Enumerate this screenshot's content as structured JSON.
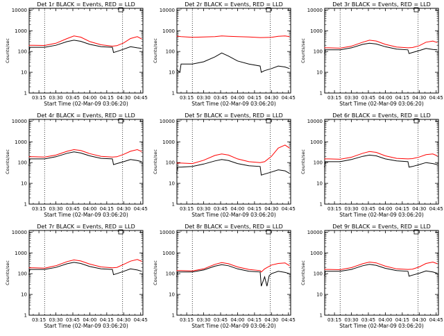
{
  "colors": {
    "events": "#000000",
    "lld": "#ff0000",
    "background": "#ffffff"
  },
  "chart_data": [
    {
      "type": "line",
      "title": "Det 1r BLACK = Events, RED = LLD",
      "ylabel": "Counts/sec",
      "xlabel": "Start Time (02-Mar-09 03:06:20)",
      "xticks": [
        "03:15",
        "03:30",
        "03:45",
        "04:00",
        "04:15",
        "04:30",
        "04:45"
      ],
      "yticks": [
        "1",
        "10",
        "100",
        "1000",
        "10000"
      ],
      "yscale": "log",
      "ylim": [
        1,
        12000
      ],
      "xlim": [
        "03:06:20",
        "04:47:00"
      ],
      "vlines": [
        "03:20",
        "04:29"
      ],
      "series": [
        {
          "name": "Events",
          "x": [
            "03:06",
            "03:07",
            "03:10",
            "03:20",
            "03:30",
            "03:40",
            "03:46",
            "03:52",
            "04:00",
            "04:10",
            "04:20",
            "04:21",
            "04:24",
            "04:30",
            "04:36",
            "04:42",
            "04:46"
          ],
          "y": [
            80,
            160,
            160,
            160,
            200,
            300,
            350,
            310,
            220,
            170,
            160,
            90,
            100,
            130,
            170,
            150,
            140
          ]
        },
        {
          "name": "LLD",
          "x": [
            "03:06",
            "03:07",
            "03:10",
            "03:20",
            "03:30",
            "03:40",
            "03:46",
            "03:52",
            "04:00",
            "04:10",
            "04:20",
            "04:24",
            "04:30",
            "04:36",
            "04:42",
            "04:46"
          ],
          "y": [
            190,
            200,
            200,
            195,
            250,
            420,
            560,
            490,
            300,
            210,
            180,
            190,
            260,
            420,
            520,
            400
          ]
        }
      ]
    },
    {
      "type": "line",
      "title": "Det 2r BLACK = Events, RED = LLD",
      "ylabel": "Counts/sec",
      "xlabel": "Start Time (02-Mar-09 03:06:20)",
      "xticks": [
        "03:15",
        "03:30",
        "03:45",
        "04:00",
        "04:15",
        "04:30",
        "04:45"
      ],
      "yticks": [
        "1",
        "10",
        "100",
        "1000",
        "10000"
      ],
      "yscale": "log",
      "ylim": [
        1,
        12000
      ],
      "xlim": [
        "03:06:20",
        "04:47:00"
      ],
      "vlines": [
        "03:20",
        "04:29"
      ],
      "series": [
        {
          "name": "Events",
          "x": [
            "03:06",
            "03:07",
            "03:09",
            "03:10",
            "03:20",
            "03:30",
            "03:40",
            "03:46",
            "03:52",
            "04:00",
            "04:10",
            "04:20",
            "04:21",
            "04:24",
            "04:30",
            "04:36",
            "04:42",
            "04:46"
          ],
          "y": [
            15,
            12,
            10,
            25,
            25,
            32,
            55,
            85,
            60,
            35,
            25,
            20,
            10,
            12,
            15,
            20,
            18,
            15
          ]
        },
        {
          "name": "LLD",
          "x": [
            "03:06",
            "03:10",
            "03:20",
            "03:30",
            "03:40",
            "03:46",
            "03:52",
            "04:00",
            "04:10",
            "04:20",
            "04:30",
            "04:36",
            "04:42",
            "04:46"
          ],
          "y": [
            550,
            520,
            480,
            500,
            520,
            560,
            540,
            520,
            500,
            470,
            480,
            540,
            560,
            520
          ]
        }
      ]
    },
    {
      "type": "line",
      "title": "Det 3r BLACK = Events, RED = LLD",
      "ylabel": "Counts/sec",
      "xlabel": "Start Time (02-Mar-09 03:06:20)",
      "xticks": [
        "03:15",
        "03:30",
        "03:45",
        "04:00",
        "04:15",
        "04:30",
        "04:45"
      ],
      "yticks": [
        "1",
        "10",
        "100",
        "1000",
        "10000"
      ],
      "yscale": "log",
      "ylim": [
        1,
        12000
      ],
      "xlim": [
        "03:06:20",
        "04:47:00"
      ],
      "vlines": [
        "03:20",
        "04:29"
      ],
      "series": [
        {
          "name": "Events",
          "x": [
            "03:06",
            "03:07",
            "03:10",
            "03:20",
            "03:30",
            "03:40",
            "03:46",
            "03:52",
            "04:00",
            "04:10",
            "04:20",
            "04:21",
            "04:24",
            "04:30",
            "04:36",
            "04:42",
            "04:46"
          ],
          "y": [
            80,
            120,
            120,
            120,
            150,
            220,
            250,
            230,
            170,
            130,
            120,
            80,
            90,
            110,
            140,
            125,
            120
          ]
        },
        {
          "name": "LLD",
          "x": [
            "03:06",
            "03:10",
            "03:20",
            "03:30",
            "03:40",
            "03:46",
            "03:52",
            "04:00",
            "04:10",
            "04:20",
            "04:24",
            "04:30",
            "04:36",
            "04:42",
            "04:46"
          ],
          "y": [
            150,
            150,
            145,
            180,
            280,
            350,
            320,
            220,
            165,
            150,
            155,
            190,
            280,
            320,
            270
          ]
        }
      ]
    },
    {
      "type": "line",
      "title": "Det 4r BLACK = Events, RED = LLD",
      "ylabel": "Counts/sec",
      "xlabel": "Start Time (02-Mar-09 03:06:20)",
      "xticks": [
        "03:15",
        "03:30",
        "03:45",
        "04:00",
        "04:15",
        "04:30",
        "04:45"
      ],
      "yticks": [
        "1",
        "10",
        "100",
        "1000",
        "10000"
      ],
      "yscale": "log",
      "ylim": [
        1,
        12000
      ],
      "xlim": [
        "03:06:20",
        "04:47:00"
      ],
      "vlines": [
        "03:20",
        "04:29"
      ],
      "series": [
        {
          "name": "Events",
          "x": [
            "03:06",
            "03:07",
            "03:10",
            "03:20",
            "03:30",
            "03:40",
            "03:46",
            "03:52",
            "04:00",
            "04:10",
            "04:20",
            "04:21",
            "04:24",
            "04:30",
            "04:36",
            "04:42",
            "04:46"
          ],
          "y": [
            70,
            150,
            150,
            150,
            190,
            280,
            330,
            290,
            210,
            160,
            150,
            80,
            90,
            110,
            140,
            125,
            110
          ]
        },
        {
          "name": "LLD",
          "x": [
            "03:06",
            "03:10",
            "03:20",
            "03:30",
            "03:40",
            "03:46",
            "03:52",
            "04:00",
            "04:10",
            "04:20",
            "04:24",
            "04:30",
            "04:36",
            "04:42",
            "04:46"
          ],
          "y": [
            190,
            190,
            185,
            230,
            350,
            420,
            380,
            270,
            200,
            185,
            190,
            250,
            350,
            420,
            340
          ]
        }
      ]
    },
    {
      "type": "line",
      "title": "Det 5r BLACK = Events, RED = LLD",
      "ylabel": "Counts/sec",
      "xlabel": "Start Time (02-Mar-09 03:06:20)",
      "xticks": [
        "03:15",
        "03:30",
        "03:45",
        "04:00",
        "04:15",
        "04:30",
        "04:45"
      ],
      "yticks": [
        "1",
        "10",
        "100",
        "1000",
        "10000"
      ],
      "yscale": "log",
      "ylim": [
        1,
        12000
      ],
      "xlim": [
        "03:06:20",
        "04:47:00"
      ],
      "vlines": [
        "03:20",
        "04:29"
      ],
      "series": [
        {
          "name": "Events",
          "x": [
            "03:06",
            "03:07",
            "03:10",
            "03:20",
            "03:30",
            "03:40",
            "03:46",
            "03:52",
            "04:00",
            "04:10",
            "04:20",
            "04:21",
            "04:24",
            "04:30",
            "04:36",
            "04:42",
            "04:46"
          ],
          "y": [
            30,
            60,
            60,
            65,
            85,
            120,
            140,
            125,
            90,
            70,
            65,
            25,
            28,
            35,
            45,
            40,
            30
          ]
        },
        {
          "name": "LLD",
          "x": [
            "03:06",
            "03:10",
            "03:20",
            "03:30",
            "03:40",
            "03:46",
            "03:52",
            "04:00",
            "04:10",
            "04:20",
            "04:24",
            "04:30",
            "04:36",
            "04:42",
            "04:46"
          ],
          "y": [
            95,
            95,
            90,
            130,
            220,
            260,
            230,
            150,
            110,
            100,
            110,
            200,
            500,
            700,
            500
          ]
        }
      ]
    },
    {
      "type": "line",
      "title": "Det 6r BLACK = Events, RED = LLD",
      "ylabel": "Counts/sec",
      "xlabel": "Start Time (02-Mar-09 03:06:20)",
      "xticks": [
        "03:15",
        "03:30",
        "03:45",
        "04:00",
        "04:15",
        "04:30",
        "04:45"
      ],
      "yticks": [
        "1",
        "10",
        "100",
        "1000",
        "10000"
      ],
      "yscale": "log",
      "ylim": [
        1,
        12000
      ],
      "xlim": [
        "03:06:20",
        "04:47:00"
      ],
      "vlines": [
        "03:20",
        "04:29"
      ],
      "series": [
        {
          "name": "Events",
          "x": [
            "03:06",
            "03:07",
            "03:10",
            "03:20",
            "03:30",
            "03:40",
            "03:46",
            "03:52",
            "04:00",
            "04:10",
            "04:20",
            "04:21",
            "04:24",
            "04:30",
            "04:36",
            "04:42",
            "04:46"
          ],
          "y": [
            60,
            110,
            110,
            110,
            140,
            200,
            230,
            210,
            150,
            120,
            110,
            60,
            65,
            80,
            100,
            90,
            80
          ]
        },
        {
          "name": "LLD",
          "x": [
            "03:06",
            "03:10",
            "03:20",
            "03:30",
            "03:40",
            "03:46",
            "03:52",
            "04:00",
            "04:10",
            "04:20",
            "04:24",
            "04:30",
            "04:36",
            "04:42",
            "04:46"
          ],
          "y": [
            150,
            150,
            145,
            180,
            280,
            340,
            310,
            210,
            160,
            150,
            155,
            185,
            240,
            260,
            210
          ]
        }
      ]
    },
    {
      "type": "line",
      "title": "Det 7r BLACK = Events, RED = LLD",
      "ylabel": "Counts/sec",
      "xlabel": "Start Time (02-Mar-09 03:06:20)",
      "xticks": [
        "03:15",
        "03:30",
        "03:45",
        "04:00",
        "04:15",
        "04:30",
        "04:45"
      ],
      "yticks": [
        "1",
        "10",
        "100",
        "1000",
        "10000"
      ],
      "yscale": "log",
      "ylim": [
        1,
        12000
      ],
      "xlim": [
        "03:06:20",
        "04:47:00"
      ],
      "vlines": [
        "03:20",
        "04:29"
      ],
      "series": [
        {
          "name": "Events",
          "x": [
            "03:06",
            "03:07",
            "03:10",
            "03:20",
            "03:30",
            "03:40",
            "03:46",
            "03:52",
            "04:00",
            "04:10",
            "04:20",
            "04:21",
            "04:24",
            "04:30",
            "04:36",
            "04:42",
            "04:46"
          ],
          "y": [
            90,
            160,
            160,
            160,
            200,
            300,
            350,
            310,
            220,
            170,
            160,
            90,
            100,
            130,
            170,
            150,
            130
          ]
        },
        {
          "name": "LLD",
          "x": [
            "03:06",
            "03:10",
            "03:20",
            "03:30",
            "03:40",
            "03:46",
            "03:52",
            "04:00",
            "04:10",
            "04:20",
            "04:24",
            "04:30",
            "04:36",
            "04:42",
            "04:46"
          ],
          "y": [
            190,
            190,
            185,
            240,
            380,
            460,
            410,
            290,
            210,
            190,
            200,
            280,
            400,
            480,
            390
          ]
        }
      ]
    },
    {
      "type": "line",
      "title": "Det 8r BLACK = Events, RED = LLD",
      "ylabel": "Counts/sec",
      "xlabel": "Start Time (02-Mar-09 03:06:20)",
      "xticks": [
        "03:15",
        "03:30",
        "03:45",
        "04:00",
        "04:15",
        "04:30",
        "04:45"
      ],
      "yticks": [
        "1",
        "10",
        "100",
        "1000",
        "10000"
      ],
      "yscale": "log",
      "ylim": [
        1,
        12000
      ],
      "xlim": [
        "03:06:20",
        "04:47:00"
      ],
      "vlines": [
        "03:20",
        "04:29"
      ],
      "series": [
        {
          "name": "Events",
          "x": [
            "03:06",
            "03:07",
            "03:10",
            "03:20",
            "03:30",
            "03:40",
            "03:46",
            "03:52",
            "04:00",
            "04:10",
            "04:20",
            "04:21",
            "04:24",
            "04:26",
            "04:28",
            "04:30",
            "04:36",
            "04:42",
            "04:46"
          ],
          "y": [
            70,
            120,
            120,
            120,
            150,
            230,
            270,
            240,
            170,
            130,
            120,
            25,
            70,
            25,
            80,
            100,
            130,
            115,
            100
          ]
        },
        {
          "name": "LLD",
          "x": [
            "03:06",
            "03:10",
            "03:20",
            "03:30",
            "03:40",
            "03:46",
            "03:52",
            "04:00",
            "04:10",
            "04:20",
            "04:21",
            "04:24",
            "04:30",
            "04:36",
            "04:42",
            "04:46"
          ],
          "y": [
            140,
            140,
            135,
            170,
            280,
            340,
            300,
            210,
            160,
            140,
            120,
            170,
            260,
            310,
            330,
            240
          ]
        }
      ]
    },
    {
      "type": "line",
      "title": "Det 9r BLACK = Events, RED = LLD",
      "ylabel": "Counts/sec",
      "xlabel": "Start Time (02-Mar-09 03:06:20)",
      "xticks": [
        "03:15",
        "03:30",
        "03:45",
        "04:00",
        "04:15",
        "04:30",
        "04:45"
      ],
      "yticks": [
        "1",
        "10",
        "100",
        "1000",
        "10000"
      ],
      "yscale": "log",
      "ylim": [
        1,
        12000
      ],
      "xlim": [
        "03:06:20",
        "04:47:00"
      ],
      "vlines": [
        "03:20",
        "04:29"
      ],
      "series": [
        {
          "name": "Events",
          "x": [
            "03:06",
            "03:07",
            "03:10",
            "03:20",
            "03:30",
            "03:40",
            "03:46",
            "03:52",
            "04:00",
            "04:10",
            "04:20",
            "04:21",
            "04:24",
            "04:30",
            "04:36",
            "04:42",
            "04:46"
          ],
          "y": [
            80,
            130,
            130,
            130,
            160,
            240,
            280,
            250,
            180,
            140,
            130,
            75,
            85,
            105,
            135,
            120,
            105
          ]
        },
        {
          "name": "LLD",
          "x": [
            "03:06",
            "03:10",
            "03:20",
            "03:30",
            "03:40",
            "03:46",
            "03:52",
            "04:00",
            "04:10",
            "04:20",
            "04:24",
            "04:30",
            "04:36",
            "04:42",
            "04:46"
          ],
          "y": [
            160,
            160,
            155,
            195,
            300,
            360,
            330,
            230,
            170,
            160,
            165,
            210,
            310,
            360,
            300
          ]
        }
      ]
    }
  ]
}
